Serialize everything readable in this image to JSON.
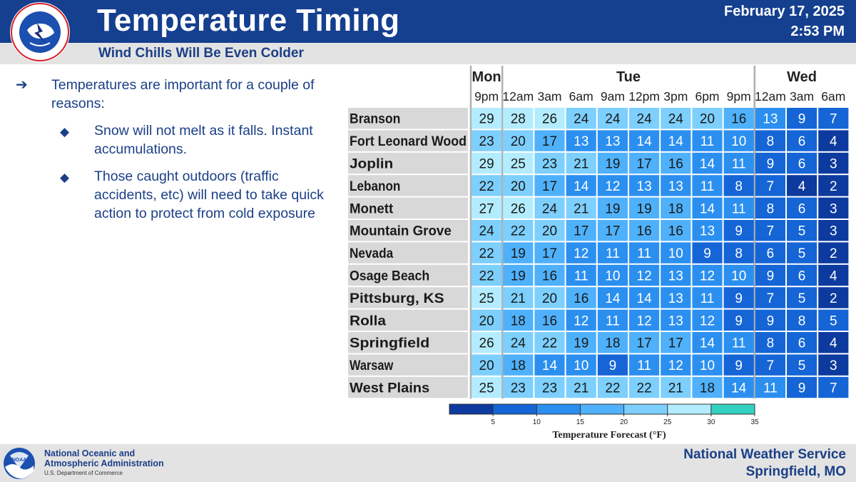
{
  "header": {
    "title": "Temperature Timing",
    "subtitle": "Wind Chills Will Be Even Colder",
    "date": "February 17, 2025",
    "time": "2:53 PM",
    "logo_text": "NATIONAL WEATHER SERVICE"
  },
  "bullets": {
    "main": "Temperatures are important for a couple of reasons:",
    "sub1": "Snow will not melt as it falls. Instant accumulations.",
    "sub2": "Those caught outdoors (traffic accidents, etc) will need to take quick action to protect from cold exposure"
  },
  "footer": {
    "noaa_line1": "National Oceanic and",
    "noaa_line2": "Atmospheric Administration",
    "noaa_line3": "U.S. Department of Commerce",
    "noaa_logo_text": "NOAA",
    "nws_line1": "National Weather Service",
    "nws_line2": "Springfield, MO"
  },
  "colors": {
    "header_bg": "#153f8f",
    "accent_text": "#1b3f86",
    "band_bg": "#e3e3e3"
  },
  "chart_data": {
    "type": "heatmap",
    "days": [
      {
        "label": "Mon",
        "span": 1
      },
      {
        "label": "Tue",
        "span": 8
      },
      {
        "label": "Wed",
        "span": 3
      }
    ],
    "times": [
      "9pm",
      "12am",
      "3am",
      "6am",
      "9am",
      "12pm",
      "3pm",
      "6pm",
      "9pm",
      "12am",
      "3am",
      "6am"
    ],
    "locations": [
      "Branson",
      "Fort Leonard Wood",
      "Joplin",
      "Lebanon",
      "Monett",
      "Mountain Grove",
      "Nevada",
      "Osage Beach",
      "Pittsburg, KS",
      "Rolla",
      "Springfield",
      "Warsaw",
      "West Plains"
    ],
    "values": [
      [
        29,
        28,
        26,
        24,
        24,
        24,
        24,
        20,
        16,
        13,
        9,
        7
      ],
      [
        23,
        20,
        17,
        13,
        13,
        14,
        14,
        11,
        10,
        8,
        6,
        4
      ],
      [
        29,
        25,
        23,
        21,
        19,
        17,
        16,
        14,
        11,
        9,
        6,
        3
      ],
      [
        22,
        20,
        17,
        14,
        12,
        13,
        13,
        11,
        8,
        7,
        4,
        2
      ],
      [
        27,
        26,
        24,
        21,
        19,
        19,
        18,
        14,
        11,
        8,
        6,
        3
      ],
      [
        24,
        22,
        20,
        17,
        17,
        16,
        16,
        13,
        9,
        7,
        5,
        3
      ],
      [
        22,
        19,
        17,
        12,
        11,
        11,
        10,
        9,
        8,
        6,
        5,
        2
      ],
      [
        22,
        19,
        16,
        11,
        10,
        12,
        13,
        12,
        10,
        9,
        6,
        4
      ],
      [
        25,
        21,
        20,
        16,
        14,
        14,
        13,
        11,
        9,
        7,
        5,
        2
      ],
      [
        20,
        18,
        16,
        12,
        11,
        12,
        13,
        12,
        9,
        9,
        8,
        5
      ],
      [
        26,
        24,
        22,
        19,
        18,
        17,
        17,
        14,
        11,
        8,
        6,
        4
      ],
      [
        20,
        18,
        14,
        10,
        9,
        11,
        12,
        10,
        9,
        7,
        5,
        3
      ],
      [
        25,
        23,
        23,
        21,
        22,
        22,
        21,
        18,
        14,
        11,
        9,
        7
      ]
    ],
    "legend": {
      "title": "Temperature Forecast (°F)",
      "ticks": [
        5,
        10,
        15,
        20,
        25,
        30,
        35
      ],
      "range": [
        0,
        35
      ],
      "bins": [
        {
          "min": 0,
          "max": 5,
          "color": "#0d3a9e"
        },
        {
          "min": 5,
          "max": 10,
          "color": "#1565d6"
        },
        {
          "min": 10,
          "max": 15,
          "color": "#2b8ff0"
        },
        {
          "min": 15,
          "max": 20,
          "color": "#4fb1fb"
        },
        {
          "min": 20,
          "max": 25,
          "color": "#7dcffd"
        },
        {
          "min": 25,
          "max": 30,
          "color": "#b3ecfe"
        },
        {
          "min": 30,
          "max": 35,
          "color": "#33d2c0"
        }
      ]
    }
  }
}
